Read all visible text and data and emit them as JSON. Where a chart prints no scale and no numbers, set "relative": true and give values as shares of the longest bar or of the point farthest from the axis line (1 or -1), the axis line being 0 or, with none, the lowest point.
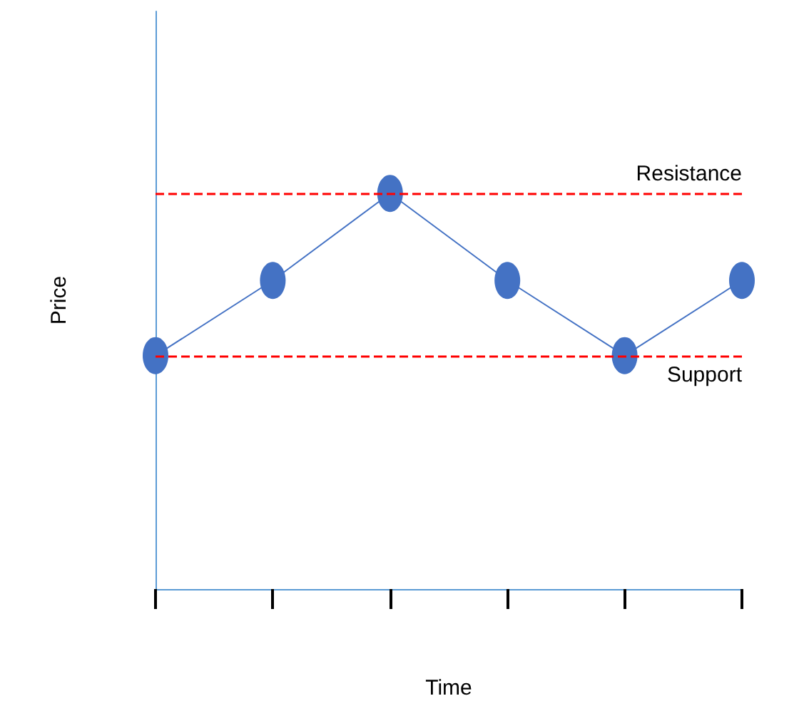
{
  "chart_data": {
    "type": "line",
    "xlabel": "Time",
    "ylabel": "Price",
    "relative": true,
    "categories": [
      null,
      null,
      null,
      null,
      null,
      null
    ],
    "series": [
      {
        "color": "#4472c4",
        "values": [
          0.59,
          0.78,
          1,
          0.78,
          0.59,
          0.78
        ]
      }
    ],
    "marker": "circle",
    "line_style": "solid",
    "grid": false,
    "ref_lines": [
      {
        "axis": "y",
        "value": 1,
        "label": "Resistance",
        "color": "#ff0000",
        "line_style": "dashed"
      },
      {
        "axis": "y",
        "value": 0.59,
        "label": "Support",
        "color": "#ff0000",
        "line_style": "dashed"
      }
    ]
  }
}
